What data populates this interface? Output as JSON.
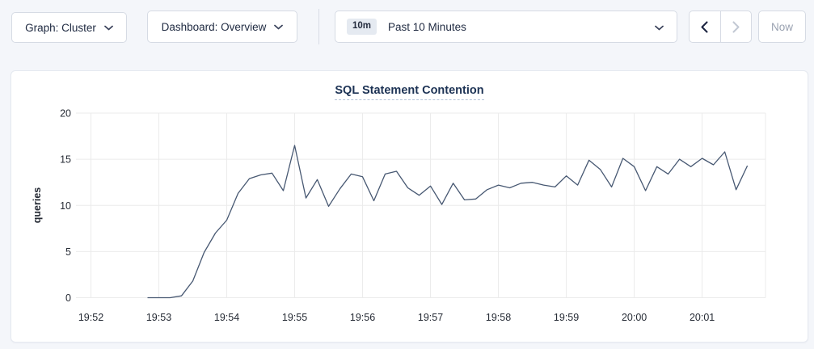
{
  "toolbar": {
    "graph_dropdown": {
      "label": "Graph: Cluster"
    },
    "dashboard_dropdown": {
      "label": "Dashboard: Overview"
    },
    "time_picker": {
      "badge": "10m",
      "label": "Past 10 Minutes"
    },
    "now_button": {
      "label": "Now"
    },
    "icons": {
      "graph": "chevron-down-icon",
      "dashboard": "chevron-down-icon",
      "time": "chevron-down-icon",
      "prev": "chevron-left-icon",
      "next": "chevron-right-icon"
    }
  },
  "colors": {
    "page_bg": "#f4f6fa",
    "card_bg": "#ffffff",
    "line": "#475872",
    "grid": "#ebebeb",
    "axis_text": "#262b35",
    "title": "#1c3254",
    "enabled_arrow": "#1b2340",
    "disabled_arrow": "#c3c9d4"
  },
  "chart_data": {
    "type": "line",
    "title": "SQL Statement Contention",
    "ylabel": "queries",
    "ylim": [
      0,
      20
    ],
    "yticks": [
      0,
      5,
      10,
      15,
      20
    ],
    "grid": true,
    "legend": "none",
    "x_domain_seconds": [
      0,
      596
    ],
    "x_ticks": [
      {
        "t": 0,
        "label": "19:52"
      },
      {
        "t": 60,
        "label": "19:53"
      },
      {
        "t": 120,
        "label": "19:54"
      },
      {
        "t": 180,
        "label": "19:55"
      },
      {
        "t": 240,
        "label": "19:56"
      },
      {
        "t": 300,
        "label": "19:57"
      },
      {
        "t": 360,
        "label": "19:58"
      },
      {
        "t": 420,
        "label": "19:59"
      },
      {
        "t": 480,
        "label": "20:00"
      },
      {
        "t": 540,
        "label": "20:01"
      }
    ],
    "series": [
      {
        "name": "queries",
        "color": "#475872",
        "points_t_sec_after_1952": [
          [
            50,
            0
          ],
          [
            60,
            0
          ],
          [
            70,
            0
          ],
          [
            80,
            0.2
          ],
          [
            90,
            1.8
          ],
          [
            100,
            4.9
          ],
          [
            110,
            7
          ],
          [
            120,
            8.4
          ],
          [
            130,
            11.3
          ],
          [
            140,
            12.9
          ],
          [
            150,
            13.3
          ],
          [
            160,
            13.5
          ],
          [
            170,
            11.6
          ],
          [
            180,
            16.5
          ],
          [
            190,
            10.8
          ],
          [
            200,
            12.8
          ],
          [
            210,
            9.9
          ],
          [
            220,
            11.8
          ],
          [
            230,
            13.4
          ],
          [
            240,
            13.1
          ],
          [
            250,
            10.5
          ],
          [
            260,
            13.4
          ],
          [
            270,
            13.7
          ],
          [
            280,
            11.9
          ],
          [
            290,
            11.1
          ],
          [
            300,
            12.1
          ],
          [
            310,
            10.1
          ],
          [
            320,
            12.4
          ],
          [
            330,
            10.6
          ],
          [
            340,
            10.7
          ],
          [
            350,
            11.7
          ],
          [
            360,
            12.2
          ],
          [
            370,
            11.9
          ],
          [
            380,
            12.4
          ],
          [
            390,
            12.5
          ],
          [
            400,
            12.2
          ],
          [
            410,
            12
          ],
          [
            420,
            13.2
          ],
          [
            430,
            12.2
          ],
          [
            440,
            14.9
          ],
          [
            450,
            13.9
          ],
          [
            460,
            12
          ],
          [
            470,
            15.1
          ],
          [
            480,
            14.2
          ],
          [
            490,
            11.6
          ],
          [
            500,
            14.2
          ],
          [
            510,
            13.4
          ],
          [
            520,
            15
          ],
          [
            530,
            14.2
          ],
          [
            540,
            15.1
          ],
          [
            550,
            14.4
          ],
          [
            560,
            15.8
          ],
          [
            570,
            11.7
          ],
          [
            580,
            14.3
          ]
        ]
      }
    ]
  }
}
